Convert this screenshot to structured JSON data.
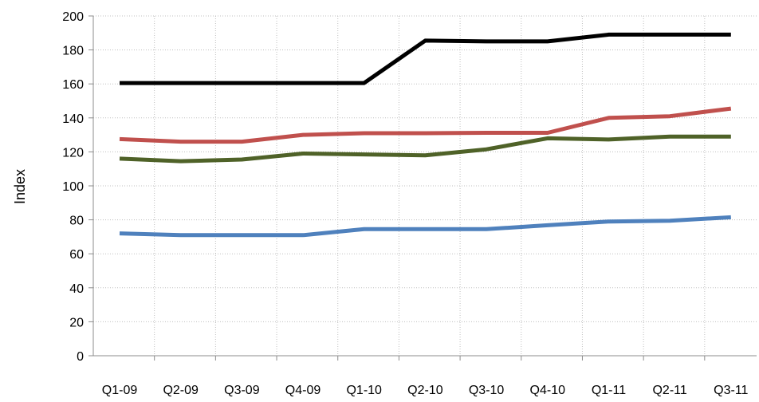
{
  "chart_data": {
    "type": "line",
    "title": "",
    "xlabel": "",
    "ylabel": "Index",
    "categories": [
      "Q1-09",
      "Q2-09",
      "Q3-09",
      "Q4-09",
      "Q1-10",
      "Q2-10",
      "Q3-10",
      "Q4-10",
      "Q1-11",
      "Q2-11",
      "Q3-11"
    ],
    "ylim": [
      0,
      200
    ],
    "yticks": [
      0,
      20,
      40,
      60,
      80,
      100,
      120,
      140,
      160,
      180,
      200
    ],
    "grid": true,
    "legend": "none",
    "series": [
      {
        "color": "#000000",
        "values": [
          160.5,
          160.5,
          160.5,
          160.5,
          160.5,
          185.5,
          185,
          185,
          189,
          189,
          189
        ]
      },
      {
        "color": "#c0504d",
        "values": [
          127.5,
          126,
          126,
          130,
          131,
          131,
          131.2,
          131.2,
          140,
          141,
          145.5
        ]
      },
      {
        "color": "#4f6228",
        "values": [
          116,
          114.5,
          115.5,
          119,
          118.5,
          118,
          121.5,
          128,
          127.3,
          129,
          129
        ]
      },
      {
        "color": "#4f81bd",
        "values": [
          72,
          71,
          71,
          71,
          74.5,
          74.5,
          74.5,
          76.8,
          79,
          79.5,
          81.5
        ]
      }
    ]
  }
}
